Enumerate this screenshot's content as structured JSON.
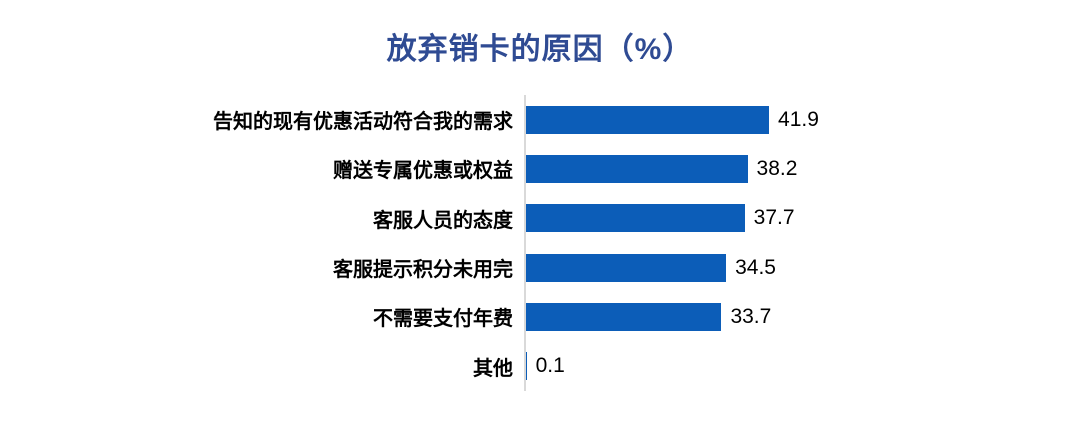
{
  "chart_data": {
    "type": "bar",
    "orientation": "horizontal",
    "title": "放弃销卡的原因（%）",
    "categories": [
      "告知的现有优惠活动符合我的需求",
      "赠送专属优惠或权益",
      "客服人员的态度",
      "客服提示积分未用完",
      "不需要支付年费",
      "其他"
    ],
    "values": [
      41.9,
      38.2,
      37.7,
      34.5,
      33.7,
      0.1
    ],
    "value_labels": [
      "41.9",
      "38.2",
      "37.7",
      "34.5",
      "33.7",
      "0.1"
    ],
    "xlabel": "",
    "ylabel": "",
    "xlim": [
      0,
      45
    ],
    "grid": false,
    "legend": false,
    "colors": {
      "bar": "#0c5db8",
      "title": "#2f4b93",
      "axis_line": "#d9d9d9",
      "category_label": "#000000",
      "value_label": "#000000",
      "background": "#ffffff"
    }
  }
}
